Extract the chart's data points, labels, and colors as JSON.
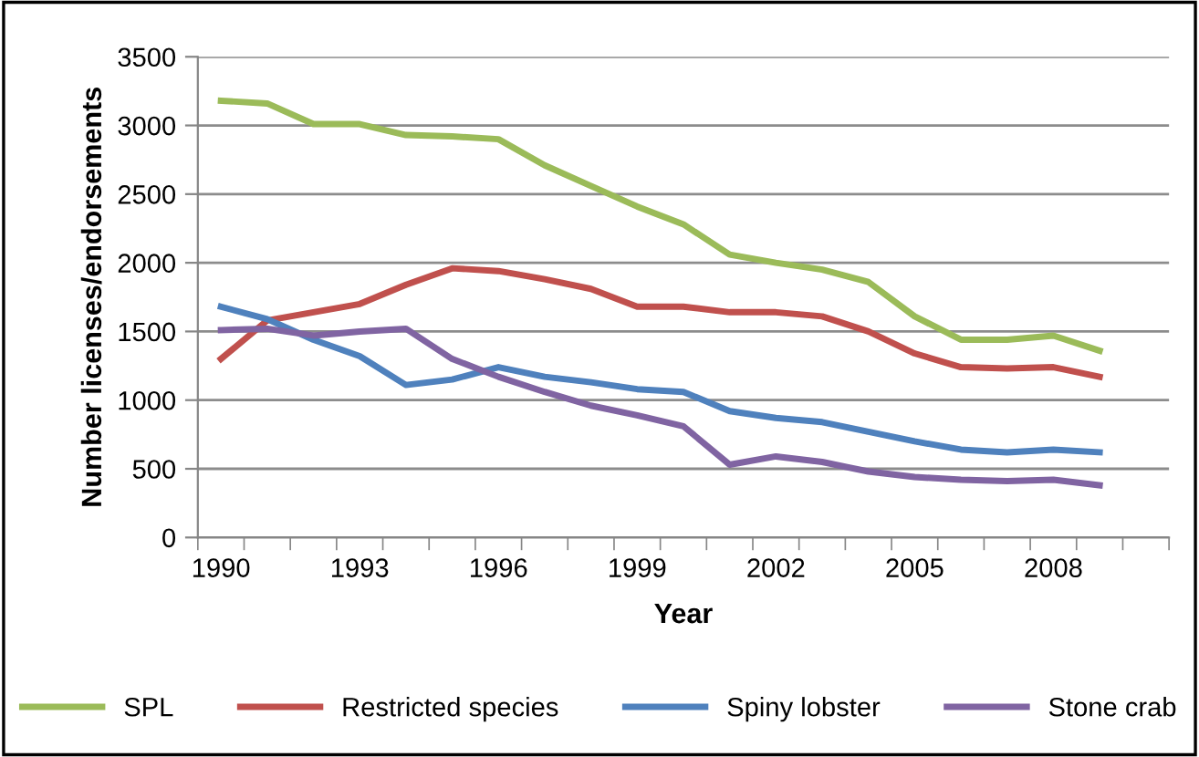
{
  "chart_data": {
    "type": "line",
    "xlabel": "Year",
    "ylabel": "Number licenses/endorsements",
    "categories": [
      "1990",
      null,
      null,
      "1993",
      null,
      null,
      "1996",
      null,
      null,
      "1999",
      null,
      null,
      "2002",
      null,
      null,
      "2005",
      null,
      null,
      "2008",
      null,
      null
    ],
    "series": [
      {
        "name": "SPL",
        "color": "#9bbb59",
        "values": [
          3180,
          3160,
          3010,
          3010,
          2930,
          2920,
          2900,
          2710,
          2560,
          2410,
          2280,
          2060,
          2000,
          1950,
          1860,
          1610,
          1440,
          1440,
          1470,
          1360,
          null
        ]
      },
      {
        "name": "Restricted species",
        "color": "#c0504d",
        "values": [
          1300,
          1580,
          1640,
          1700,
          1840,
          1960,
          1940,
          1880,
          1810,
          1680,
          1680,
          1640,
          1640,
          1610,
          1500,
          1340,
          1240,
          1230,
          1240,
          1170,
          null
        ]
      },
      {
        "name": "Spiny lobster",
        "color": "#4f81bd",
        "values": [
          1680,
          1590,
          1440,
          1320,
          1110,
          1150,
          1240,
          1170,
          1130,
          1080,
          1060,
          920,
          870,
          840,
          770,
          700,
          640,
          620,
          640,
          620,
          null
        ]
      },
      {
        "name": "Stone crab",
        "color": "#8064a2",
        "values": [
          1510,
          1520,
          1470,
          1500,
          1520,
          1300,
          1170,
          1060,
          960,
          890,
          810,
          530,
          590,
          550,
          480,
          440,
          420,
          410,
          420,
          380,
          null
        ]
      }
    ],
    "ylim": [
      0,
      3500
    ],
    "yticks": [
      0,
      500,
      1000,
      1500,
      2000,
      2500,
      3000,
      3500
    ],
    "grid": "y",
    "legend": "bottom",
    "marker": "none",
    "line_style": "solid"
  }
}
